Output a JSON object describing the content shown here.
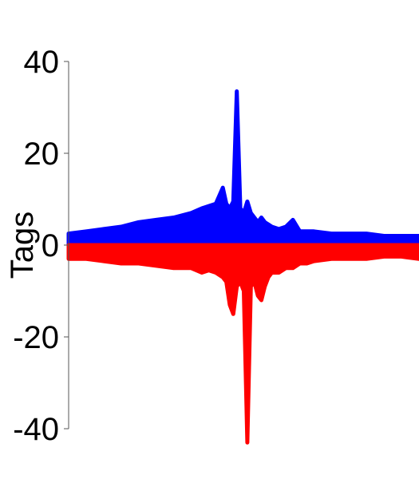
{
  "chart_data": {
    "type": "area",
    "title": "",
    "xlabel": "",
    "ylabel": "Tags",
    "ylim": [
      -40,
      40
    ],
    "yticks": [
      40,
      20,
      0,
      -20,
      -40
    ],
    "ytick_labels": [
      "40",
      "20",
      "0",
      "-20",
      "-40"
    ],
    "grid": false,
    "legend": "none",
    "x": [
      0,
      5,
      10,
      15,
      20,
      25,
      30,
      35,
      38,
      40,
      42,
      44,
      45,
      46,
      47,
      48,
      49,
      50,
      51,
      52,
      53,
      54,
      55,
      56,
      57,
      58,
      60,
      62,
      64,
      66,
      68,
      70,
      75,
      80,
      85,
      90,
      95,
      100
    ],
    "series": [
      {
        "color": "#0000ff",
        "values": [
          2.5,
          3,
          3.5,
          4,
          5,
          5.5,
          6,
          7,
          8,
          8.5,
          9,
          12.5,
          9,
          8,
          9.5,
          33.5,
          8,
          7,
          9.5,
          7,
          6,
          5,
          6,
          5,
          4.5,
          4,
          3.5,
          4,
          5.5,
          3,
          3,
          3,
          2.5,
          2.5,
          2.5,
          2,
          2,
          2
        ]
      },
      {
        "color": "#ff0000",
        "values": [
          -3,
          -3,
          -3.5,
          -4,
          -4,
          -4.5,
          -5,
          -5,
          -6,
          -5.5,
          -6,
          -7,
          -8,
          -13,
          -15,
          -9,
          -8,
          -10,
          -43,
          -9,
          -8,
          -11,
          -12,
          -9,
          -7,
          -6,
          -6,
          -5,
          -5,
          -4,
          -4,
          -3.5,
          -3,
          -3,
          -3,
          -2.5,
          -2.5,
          -3
        ]
      }
    ]
  }
}
